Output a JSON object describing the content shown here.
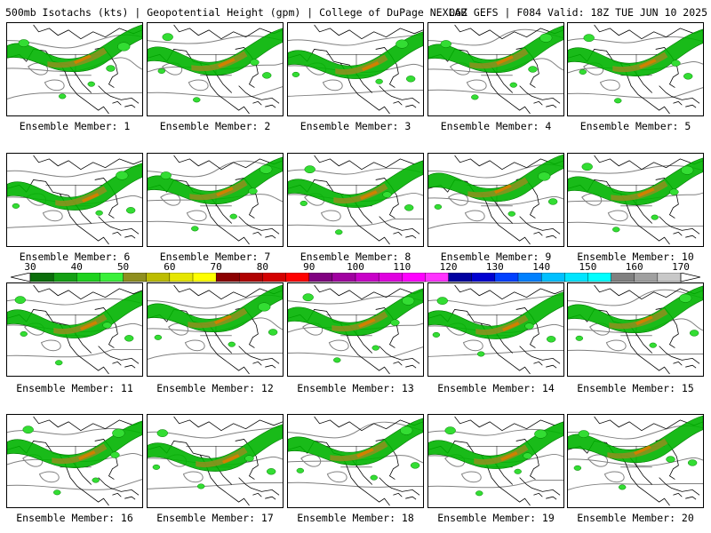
{
  "header": {
    "left": "500mb Isotachs (kts) | Geopotential Height (gpm) | College of DuPage NEXLAB",
    "right": "06Z GEFS | F084 Valid: 18Z TUE JUN 10 2025"
  },
  "colorbar": {
    "ticks": [
      "30",
      "40",
      "50",
      "60",
      "70",
      "80",
      "90",
      "100",
      "110",
      "120",
      "130",
      "140",
      "150",
      "160",
      "170"
    ],
    "colors": [
      "#0b6e0b",
      "#13a013",
      "#1ed21e",
      "#3af03a",
      "#8f8f1f",
      "#bdbd00",
      "#e6e600",
      "#ffff00",
      "#8b0000",
      "#b00000",
      "#d40000",
      "#ff0000",
      "#800080",
      "#a000a0",
      "#c800c8",
      "#e000e0",
      "#ff00ff",
      "#ff33ff",
      "#0000a0",
      "#0000d0",
      "#0040ff",
      "#0080ff",
      "#00c0ff",
      "#00e5ff",
      "#00ffff",
      "#808080",
      "#a0a0a0",
      "#c8c8c8"
    ]
  },
  "map_colors": {
    "green_dark": "#007a00",
    "green": "#00b400",
    "green_light": "#33dd33",
    "olive": "#8f8f1f",
    "orange": "#d08000",
    "contour": "#808080",
    "coast": "#000000"
  },
  "members": [
    {
      "label": "Ensemble Member: 1"
    },
    {
      "label": "Ensemble Member: 2"
    },
    {
      "label": "Ensemble Member: 3"
    },
    {
      "label": "Ensemble Member: 4"
    },
    {
      "label": "Ensemble Member: 5"
    },
    {
      "label": "Ensemble Member: 6"
    },
    {
      "label": "Ensemble Member: 7"
    },
    {
      "label": "Ensemble Member: 8"
    },
    {
      "label": "Ensemble Member: 9"
    },
    {
      "label": "Ensemble Member: 10"
    },
    {
      "label": "Ensemble Member: 11"
    },
    {
      "label": "Ensemble Member: 12"
    },
    {
      "label": "Ensemble Member: 13"
    },
    {
      "label": "Ensemble Member: 14"
    },
    {
      "label": "Ensemble Member: 15"
    },
    {
      "label": "Ensemble Member: 16"
    },
    {
      "label": "Ensemble Member: 17"
    },
    {
      "label": "Ensemble Member: 18"
    },
    {
      "label": "Ensemble Member: 19"
    },
    {
      "label": "Ensemble Member: 20"
    }
  ]
}
